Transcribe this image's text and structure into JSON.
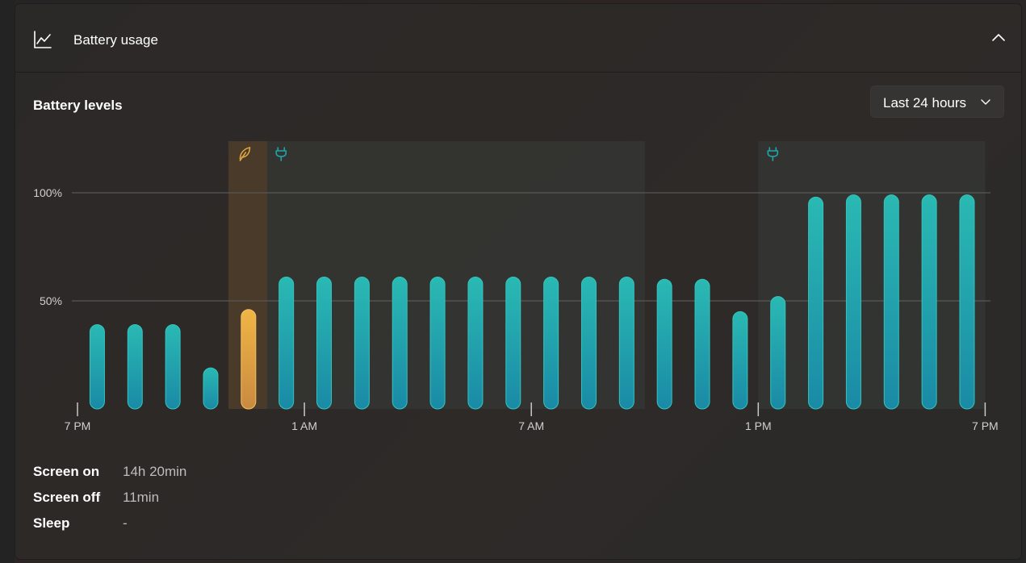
{
  "header": {
    "title": "Battery usage",
    "icon": "line-chart-icon",
    "collapse_icon": "chevron-up-icon"
  },
  "section": {
    "title": "Battery levels"
  },
  "range_dropdown": {
    "selected": "Last 24 hours",
    "icon": "chevron-down-icon"
  },
  "chart_data": {
    "type": "bar",
    "title": "",
    "xlabel": "",
    "ylabel": "",
    "ylim": [
      0,
      100
    ],
    "y_ticks": [
      {
        "value": 100,
        "label": "100%"
      },
      {
        "value": 50,
        "label": "50%"
      }
    ],
    "x_tick_labels": [
      "7 PM",
      "1 AM",
      "7 AM",
      "1 PM",
      "7 PM"
    ],
    "grid": "horizontal",
    "values": [
      39,
      39,
      39,
      19,
      46,
      61,
      61,
      61,
      61,
      61,
      61,
      61,
      61,
      61,
      61,
      60,
      60,
      45,
      52,
      98,
      99,
      99,
      99,
      99
    ],
    "bar_colors": [
      "#1fa6a8",
      "#1fa6a8",
      "#1fa6a8",
      "#1fa6a8",
      "#e0a640",
      "#1fa6a8",
      "#1fa6a8",
      "#1fa6a8",
      "#1fa6a8",
      "#1fa6a8",
      "#1fa6a8",
      "#1fa6a8",
      "#1fa6a8",
      "#1fa6a8",
      "#1fa6a8",
      "#1fa6a8",
      "#1fa6a8",
      "#1fa6a8",
      "#1fa6a8",
      "#1fa6a8",
      "#1fa6a8",
      "#1fa6a8",
      "#1fa6a8",
      "#1fa6a8"
    ],
    "regions": [
      {
        "kind": "battery-saver",
        "icon": "leaf-icon",
        "start_hour": 4,
        "end_hour": 5,
        "color": "#e0a640"
      },
      {
        "kind": "plugged-in",
        "icon": "plug-icon",
        "start_hour": 5,
        "end_hour": 15,
        "color": "#1fa6a8"
      },
      {
        "kind": "plugged-in",
        "icon": "plug-icon",
        "start_hour": 18,
        "end_hour": 24,
        "color": "#1fa6a8"
      }
    ]
  },
  "stats": [
    {
      "label": "Screen on",
      "value": "14h 20min"
    },
    {
      "label": "Screen off",
      "value": "11min"
    },
    {
      "label": "Sleep",
      "value": "-"
    }
  ]
}
